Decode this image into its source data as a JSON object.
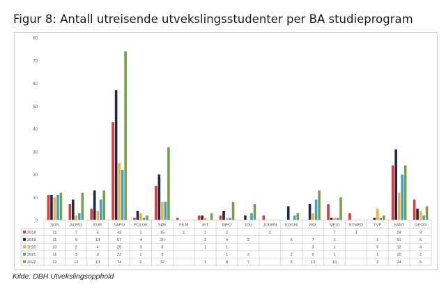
{
  "figure": {
    "title": "Figur 8: Antall utreisende utvekslingsstudenter per BA studieprogram",
    "source": "Kilde: DBH Utvekslingsopphold"
  },
  "chart_data": {
    "type": "bar",
    "title": "",
    "xlabel": "",
    "ylabel": "",
    "ylim": [
      0,
      80
    ],
    "yticks": [
      0,
      10,
      20,
      30,
      40,
      50,
      60,
      70,
      80
    ],
    "grid": false,
    "legend": "left of data table",
    "categories": [
      "SOS",
      "AORG",
      "EUR",
      "SAPO",
      "POLOK",
      "SØK",
      "FILM",
      "IKT",
      "INFO",
      "JOU",
      "JOURN",
      "KOGNI",
      "MIX",
      "MEVI",
      "NYMED",
      "TVP",
      "SANT",
      "GEOG"
    ],
    "series": [
      {
        "name": "2018",
        "color": "#e8333a",
        "values": [
          11,
          7,
          5,
          43,
          1,
          15,
          1,
          2,
          2,
          null,
          2,
          null,
          null,
          7,
          3,
          null,
          24,
          9
        ]
      },
      {
        "name": "2019",
        "color": "#1a2a4a",
        "values": [
          11,
          9,
          13,
          57,
          4,
          20,
          null,
          2,
          4,
          2,
          null,
          6,
          7,
          1,
          null,
          1,
          31,
          5
        ]
      },
      {
        "name": "2020",
        "color": "#f2b42c",
        "values": [
          10,
          2,
          4,
          25,
          3,
          8,
          null,
          1,
          1,
          null,
          null,
          null,
          3,
          1,
          null,
          5,
          12,
          4
        ]
      },
      {
        "name": "2021",
        "color": "#3aa0d8",
        "values": [
          11,
          3,
          9,
          22,
          1,
          8,
          null,
          null,
          1,
          3,
          null,
          2,
          9,
          1,
          null,
          1,
          20,
          2
        ]
      },
      {
        "name": "2022",
        "color": "#76a04a",
        "values": [
          12,
          12,
          13,
          74,
          2,
          32,
          null,
          3,
          8,
          7,
          null,
          3,
          13,
          10,
          null,
          2,
          24,
          6
        ]
      }
    ]
  }
}
